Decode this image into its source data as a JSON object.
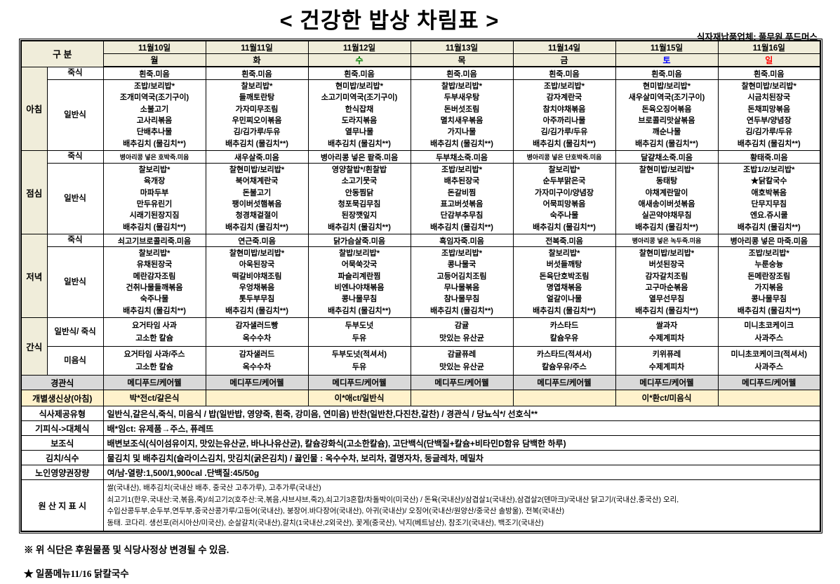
{
  "page": {
    "title": "< 건강한 밥상 차림표 >",
    "supplier": "식자재납품업체: 풀무원 푸드머스",
    "notes": [
      "※ 위 식단은 후원물품 및 식당사정상 변경될 수 있음.",
      "★ 일품메뉴11/16 닭칼국수"
    ]
  },
  "colors": {
    "header_bg": "#f0edda",
    "gray_row": "#d9d9d9",
    "highlight_row": "#fff2cc",
    "wednesday_green": "#008000",
    "saturday_blue": "#0000ff",
    "sunday_red": "#ff0000"
  },
  "table": {
    "category_label": "구 분",
    "dates": [
      "11월10일",
      "11월11일",
      "11월12일",
      "11월13일",
      "11월14일",
      "11월15일",
      "11월16일"
    ],
    "days": [
      {
        "label": "월",
        "color": "#000000"
      },
      {
        "label": "화",
        "color": "#000000"
      },
      {
        "label": "수",
        "color": "#008000"
      },
      {
        "label": "목",
        "color": "#000000"
      },
      {
        "label": "금",
        "color": "#000000"
      },
      {
        "label": "토",
        "color": "#0000ff"
      },
      {
        "label": "일",
        "color": "#ff0000"
      }
    ],
    "row_labels": {
      "porridge": "죽식",
      "regular": "일반식"
    },
    "meals": [
      {
        "label": "아침",
        "porridge": [
          "흰죽.미음",
          "흰죽.미음",
          "흰죽.미음",
          "흰죽.미음",
          "흰죽.미음",
          "흰죽.미음",
          "흰죽.미음"
        ],
        "regular": [
          [
            "조밥/보리밥*",
            "조개미역국(조기구이)",
            "소불고기",
            "고사리볶음",
            "단배추나물",
            "배추김치 (물김치**)"
          ],
          [
            "찰보리밥*",
            "들깨토란탕",
            "가자미무조림",
            "우민찌오이볶음",
            "김/김가루/두유",
            "배추김치 (물김치**)"
          ],
          [
            "현미밥/보리밥*",
            "소고기미역국(조기구이)",
            "한식잡채",
            "도라지볶음",
            "열무나물",
            "배추김치 (물김치**)"
          ],
          [
            "찰밥/보리밥*",
            "두부새우탕",
            "돈버섯조림",
            "멸치새우볶음",
            "가지나물",
            "배추김치 (물김치**)"
          ],
          [
            "조밥/보리밥*",
            "감자계란국",
            "참치야채볶음",
            "아주까리나물",
            "김/김가루/두유",
            "배추김치 (물김치**)"
          ],
          [
            "현미밥/보리밥*",
            "새우살미역국(조기구이)",
            "돈육오징어볶음",
            "브로콜리맛살볶음",
            "깨순나물",
            "배추김치 (물김치**)"
          ],
          [
            "찰현미밥/보리밥*",
            "시금치된장국",
            "돈채피망볶음",
            "연두부/양념장",
            "김/김가루/두유",
            "배추김치 (물김치**)"
          ]
        ]
      },
      {
        "label": "점심",
        "porridge": [
          "병아리콩 넣은 호박죽.미음",
          "새우살죽.미음",
          "병아리콩 넣은 팥죽.미음",
          "두부채소죽.미음",
          "병아리콩 넣은 단호박죽.미음",
          "달걀채소죽.미음",
          "황태죽.미음"
        ],
        "regular": [
          [
            "찰보리밥*",
            "육개장",
            "마파두부",
            "만두유린기",
            "시래기된장지짐",
            "배추김치 (물김치**)"
          ],
          [
            "찰현미밥/보리밥*",
            "북어채계란국",
            "돈불고기",
            "팽이버섯햄볶음",
            "청경채겉절이",
            "배추김치 (물김치**)"
          ],
          [
            "영양찰밥*/흰찰밥",
            "소고기뭇국",
            "안동찜닭",
            "청포묵김무침",
            "된장깻잎지",
            "배추김치 (물김치**)"
          ],
          [
            "조밥/보리밥*",
            "배추된장국",
            "돈갈비찜",
            "표고버섯볶음",
            "단감부추무침",
            "배추김치 (물김치**)"
          ],
          [
            "찰보리밥*",
            "순두부맑은국",
            "가자미구이/양념장",
            "어묵피망볶음",
            "숙주나물",
            "배추김치 (물김치**)"
          ],
          [
            "찰현미밥/보리밥*",
            "동태탕",
            "야채계란말이",
            "애새송이버섯볶음",
            "실곤약야채무침",
            "배추김치 (물김치**)"
          ],
          [
            "조밥1/2/보리밥*",
            "★닭칼국수",
            "애호박볶음",
            "단무지무침",
            "엔요.쥬시쿨",
            "배추김치 (물김치**)"
          ]
        ]
      },
      {
        "label": "저녁",
        "porridge": [
          "쇠고기브로콜리죽.미음",
          "연근죽.미음",
          "닭가슴살죽.미음",
          "흑임자죽.미음",
          "전복죽.미음",
          "병아리콩 넣은 녹두죽.미음",
          "병아리콩 넣은 마죽.미음"
        ],
        "regular": [
          [
            "찰보리밥*",
            "유채된장국",
            "메란감자조림",
            "건취나물들깨볶음",
            "숙주나물",
            "배추김치 (물김치**)"
          ],
          [
            "찰현미밥/보리밥*",
            "아욱된장국",
            "떡갈비야채조림",
            "우엉채볶음",
            "톳두부무침",
            "배추김치 (물김치**)"
          ],
          [
            "찰밥/보리밥*",
            "어묵쑥갓국",
            "파슬리계란찜",
            "비엔나야채볶음",
            "콩나물무침",
            "배추김치 (물김치**)"
          ],
          [
            "조밥/보리밥*",
            "콩나물국",
            "고등어김치조림",
            "무나물볶음",
            "참나물무침",
            "배추김치 (물김치**)"
          ],
          [
            "찰보리밥*",
            "버섯들깨탕",
            "돈육단호박조림",
            "명엽채볶음",
            "얼갈이나물",
            "배추김치 (물김치**)"
          ],
          [
            "찰현미밥/보리밥*",
            "버섯된장국",
            "감자갈치조림",
            "고구마순볶음",
            "열무선무침",
            "배추김치 (물김치**)"
          ],
          [
            "조밥/보리밥*",
            "누룬숭늉",
            "돈메란장조림",
            "가지볶음",
            "콩나물무침",
            "배추김치 (물김치**)"
          ]
        ]
      }
    ],
    "snack": {
      "label": "간식",
      "rows": [
        {
          "label": "일반식/ 죽식",
          "items": [
            [
              "요거타임 사과",
              "고소한 칼슘"
            ],
            [
              "감자샐러드빵",
              "옥수수차"
            ],
            [
              "두부도넛",
              "두유"
            ],
            [
              "감귤",
              "맛있는 유산균"
            ],
            [
              "카스타드",
              "칼슘우유"
            ],
            [
              "쌀과자",
              "수제계피차"
            ],
            [
              "미니초코케이크",
              "사과주스"
            ]
          ]
        },
        {
          "label": "미음식",
          "items": [
            [
              "요거타임 사과/주스",
              "고소한 칼슘"
            ],
            [
              "감자샐러드",
              "옥수수차"
            ],
            [
              "두부도넛(적셔서)",
              "두유"
            ],
            [
              "감귤퓨레",
              "맛있는 유산균"
            ],
            [
              "카스타드(적셔서)",
              "칼슘우유/주스"
            ],
            [
              "키위퓨레",
              "수제계피차"
            ],
            [
              "미니초코케이크(적셔서)",
              "사과주스"
            ]
          ]
        }
      ]
    },
    "tube_feeding": {
      "label": "경관식",
      "values": [
        "메디푸드/케어웰",
        "메디푸드/케어웰",
        "메디푸드/케어웰",
        "메디푸드/케어웰",
        "메디푸드/케어웰",
        "메디푸드/케어웰",
        "메디푸드/케어웰"
      ]
    },
    "birthday": {
      "label": "개별생신상(아침)",
      "values": [
        "박*전ct/갈은식",
        "",
        "이*애ct/일반식",
        "",
        "",
        "이*환ct/미음식",
        ""
      ]
    },
    "info_rows": [
      {
        "label": "식사제공유형",
        "content": "일반식,갈은식,죽식, 미음식 / 밥(일반밥, 영양죽, 흰죽, 강미음, 연미음) 반찬(일반찬,다진찬,갈찬) / 경관식 / 당뇨식*/ 선호식**"
      },
      {
        "label": "기피식->대체식",
        "content": "배*임ct: 유제품→주스, 퓨레뜨"
      },
      {
        "label": "보조식",
        "content": "배변보조식(식이섬유이지, 맛있는유산균, 바나나유산균), 칼슘강화식(고소한칼슘), 고단백식(단백질+칼슘+비타민D함유 담백한 하루)"
      },
      {
        "label": "김치/식수",
        "content": "물김치 및 배추김치(슬라이스김치, 맛김치(굵은김치) / 끓인물 : 옥수수차, 보리차, 결명자차, 둥글레차, 메밀차"
      },
      {
        "label": "노인영양권장량",
        "content": "여/남-열량:1,500/1,900cal .단백질:45/50g"
      }
    ],
    "origin": {
      "label": "원 산 지 표 시",
      "lines": [
        "쌀(국내산),  배추김치(국내산 배추, 중국산 고추가루), 고추가루(국내산)",
        "쇠고기1(한우,국내산:국,볶음,죽)/쇠고기2(호주산:국,볶음,샤브샤브,죽2),쇠고기3혼합/차돌박이(미국산) / 돈육(국내산)/삼겹살1(국내산),삼겹살2(덴마크)/국내산 닭고기/(국내산,중국산) 오리,",
        "수입산콩두부,순두부,연두부,중국산콩가루/고등어(국내산), 붕장어.바다장어(국내산), 아귀(국내산)/ 오징어(국내산/원양산/중국산 솔방울), 전복(국내산)",
        "동태. 코다리. 생선포(러시아산/미국산), 순살갈치(국내산),갈치(1국내산,2외국산), 꽃게(중국산), 낙지(베트남산), 참조기(국내산), 백조기(국내산)"
      ]
    }
  }
}
